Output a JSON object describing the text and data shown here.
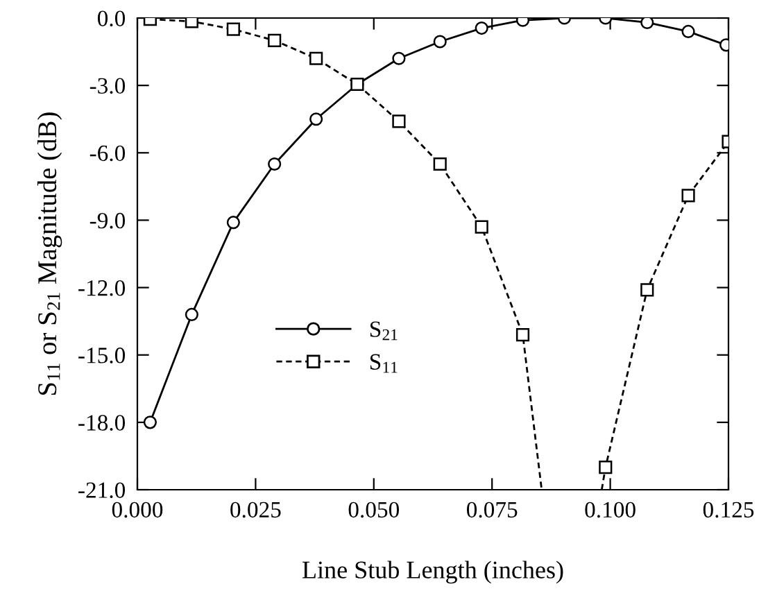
{
  "chart_data": {
    "type": "line",
    "xlabel": "Line Stub Length (inches)",
    "ylabel": "S$_{11}$ or S$_{21}$ Magnitude (dB)",
    "xlim": [
      0,
      0.125
    ],
    "ylim": [
      -21,
      0
    ],
    "xticks": [
      {
        "value": 0,
        "label": "0.000"
      },
      {
        "value": 0.025,
        "label": "0.025"
      },
      {
        "value": 0.05,
        "label": "0.050"
      },
      {
        "value": 0.075,
        "label": "0.075"
      },
      {
        "value": 0.1,
        "label": "0.100"
      },
      {
        "value": 0.125,
        "label": "0.125"
      }
    ],
    "yticks": [
      {
        "value": 0,
        "label": "0.0"
      },
      {
        "value": -3,
        "label": "-3.0"
      },
      {
        "value": -6,
        "label": "-6.0"
      },
      {
        "value": -9,
        "label": "-9.0"
      },
      {
        "value": -12,
        "label": "-12.0"
      },
      {
        "value": -15,
        "label": "-15.0"
      },
      {
        "value": -18,
        "label": "-18.0"
      },
      {
        "value": -21,
        "label": "-21.0"
      }
    ],
    "grid": false,
    "legend": "bottom left",
    "series": [
      {
        "name": "S$_{21}$",
        "color": "#000000",
        "marker": "circle",
        "line_style": "solid",
        "x": [
          0.0027,
          0.0115,
          0.0203,
          0.029,
          0.0378,
          0.0465,
          0.0553,
          0.064,
          0.0728,
          0.0815,
          0.0903,
          0.099,
          0.1078,
          0.1165,
          0.1245
        ],
        "values": [
          -18.0,
          -13.2,
          -9.1,
          -6.5,
          -4.5,
          -2.95,
          -1.8,
          -1.05,
          -0.45,
          -0.1,
          0.0,
          0.0,
          -0.2,
          -0.6,
          -1.2
        ]
      },
      {
        "name": "S$_{11}$",
        "color": "#000000",
        "marker": "square",
        "line_style": "dashed",
        "x": [
          0.0027,
          0.0115,
          0.0203,
          0.029,
          0.0378,
          0.0465,
          0.0553,
          0.064,
          0.0728,
          0.0815,
          0.0855,
          null,
          0.0982,
          0.099,
          0.1078,
          0.1165,
          0.125
        ],
        "values": [
          -0.05,
          -0.15,
          -0.5,
          -1.0,
          -1.8,
          -2.95,
          -4.6,
          -6.5,
          -9.3,
          -14.1,
          -21.0,
          null,
          -21.0,
          -20.0,
          -12.1,
          -7.9,
          -5.5
        ]
      }
    ]
  }
}
